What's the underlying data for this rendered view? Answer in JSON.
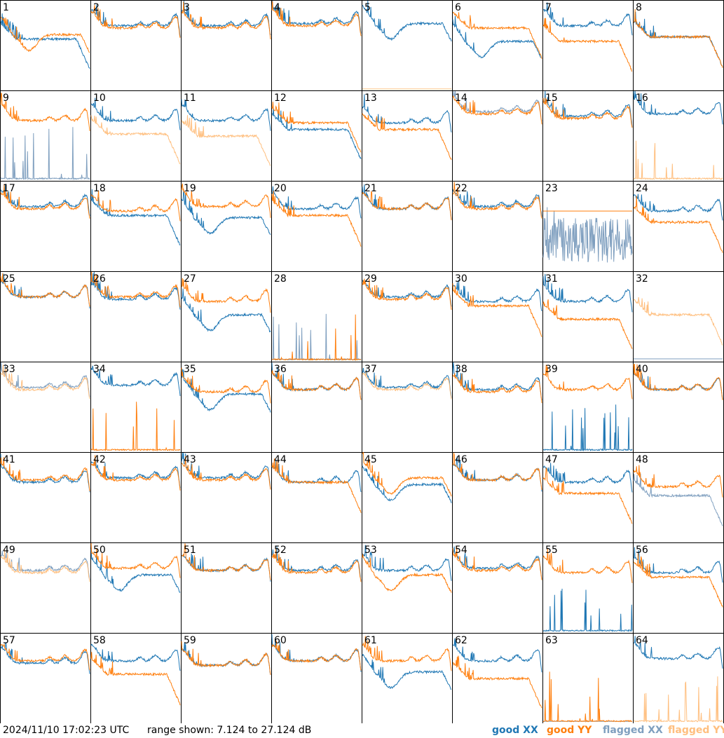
{
  "timestamp": "2024/11/10 17:02:23 UTC",
  "range_text": "range shown: 7.124 to 27.124 dB",
  "legend": {
    "good_xx": "good XX",
    "good_yy": "good YY",
    "flagged_xx": "flagged XX",
    "flagged_yy": "flagged YY"
  },
  "colors": {
    "good_xx": "#1f77b4",
    "good_yy": "#ff7f0e",
    "flagged_xx": "#7f9fbf",
    "flagged_yy": "#ffbf7f"
  },
  "chart_data": {
    "type": "line",
    "units": "dB",
    "ylim": [
      7.124,
      27.124
    ],
    "grid": "8x8 small multiples",
    "panels": [
      {
        "id": "1",
        "xx": {
          "profile": "droop",
          "level": 18.5,
          "status": "good"
        },
        "yy": {
          "profile": "dip",
          "level": 17.5,
          "status": "good"
        }
      },
      {
        "id": "2",
        "xx": {
          "profile": "bowl",
          "level": 21.5,
          "status": "good"
        },
        "yy": {
          "profile": "bowl",
          "level": 21.0,
          "status": "good"
        }
      },
      {
        "id": "3",
        "xx": {
          "profile": "bowl",
          "level": 21.5,
          "status": "good"
        },
        "yy": {
          "profile": "bowl",
          "level": 21.0,
          "status": "good"
        }
      },
      {
        "id": "4",
        "xx": {
          "profile": "bowl",
          "level": 22.0,
          "status": "good"
        },
        "yy": {
          "profile": "bowl",
          "level": 21.5,
          "status": "good"
        }
      },
      {
        "id": "5",
        "xx": {
          "profile": "dip",
          "level": 20.0,
          "status": "good"
        },
        "yy": {
          "profile": "flat",
          "level": 7.3,
          "status": "flagged"
        }
      },
      {
        "id": "6",
        "xx": {
          "profile": "dip",
          "level": 16.0,
          "status": "good"
        },
        "yy": {
          "profile": "droop",
          "level": 21.0,
          "status": "good"
        }
      },
      {
        "id": "7",
        "xx": {
          "profile": "bowl",
          "level": 21.5,
          "status": "good"
        },
        "yy": {
          "profile": "droop",
          "level": 18.0,
          "status": "good"
        }
      },
      {
        "id": "8",
        "xx": {
          "profile": "droop",
          "level": 19.0,
          "status": "good"
        },
        "yy": {
          "profile": "droop",
          "level": 19.0,
          "status": "good"
        }
      },
      {
        "id": "9",
        "xx": {
          "profile": "spiky",
          "level": 9.0,
          "status": "flagged"
        },
        "yy": {
          "profile": "bowl",
          "level": 20.5,
          "status": "good"
        }
      },
      {
        "id": "10",
        "xx": {
          "profile": "bowl",
          "level": 20.5,
          "status": "good"
        },
        "yy": {
          "profile": "droop",
          "level": 17.5,
          "status": "flagged"
        }
      },
      {
        "id": "11",
        "xx": {
          "profile": "bowl",
          "level": 20.5,
          "status": "good"
        },
        "yy": {
          "profile": "droop",
          "level": 17.0,
          "status": "flagged"
        }
      },
      {
        "id": "12",
        "xx": {
          "profile": "droop",
          "level": 18.5,
          "status": "good"
        },
        "yy": {
          "profile": "droop",
          "level": 20.0,
          "status": "good"
        }
      },
      {
        "id": "13",
        "xx": {
          "profile": "bowl",
          "level": 20.0,
          "status": "good"
        },
        "yy": {
          "profile": "droop",
          "level": 18.5,
          "status": "good"
        }
      },
      {
        "id": "14",
        "xx": {
          "profile": "bowl",
          "level": 22.5,
          "status": "flagged"
        },
        "yy": {
          "profile": "bowl",
          "level": 22.0,
          "status": "good"
        }
      },
      {
        "id": "15",
        "xx": {
          "profile": "bowl",
          "level": 21.5,
          "status": "good"
        },
        "yy": {
          "profile": "bowl",
          "level": 21.0,
          "status": "good"
        }
      },
      {
        "id": "16",
        "xx": {
          "profile": "bowl",
          "level": 22.0,
          "status": "good"
        },
        "yy": {
          "profile": "spiky",
          "level": 8.0,
          "status": "flagged"
        }
      },
      {
        "id": "17",
        "xx": {
          "profile": "bowl",
          "level": 21.5,
          "status": "good"
        },
        "yy": {
          "profile": "bowl",
          "level": 21.0,
          "status": "good"
        }
      },
      {
        "id": "18",
        "xx": {
          "profile": "droop",
          "level": 19.5,
          "status": "good"
        },
        "yy": {
          "profile": "bowl",
          "level": 20.5,
          "status": "good"
        }
      },
      {
        "id": "19",
        "xx": {
          "profile": "dip",
          "level": 17.0,
          "status": "good"
        },
        "yy": {
          "profile": "bowl",
          "level": 21.5,
          "status": "good"
        }
      },
      {
        "id": "20",
        "xx": {
          "profile": "bowl",
          "level": 21.0,
          "status": "good"
        },
        "yy": {
          "profile": "droop",
          "level": 19.5,
          "status": "good"
        }
      },
      {
        "id": "21",
        "xx": {
          "profile": "bowl",
          "level": 21.0,
          "status": "good"
        },
        "yy": {
          "profile": "bowl",
          "level": 21.0,
          "status": "good"
        }
      },
      {
        "id": "22",
        "xx": {
          "profile": "bowl",
          "level": 21.5,
          "status": "good"
        },
        "yy": {
          "profile": "bowl",
          "level": 21.0,
          "status": "good"
        }
      },
      {
        "id": "23",
        "xx": {
          "profile": "noisy",
          "level": 14.0,
          "status": "flagged"
        },
        "yy": {
          "profile": "flat",
          "level": 20.5,
          "status": "good"
        }
      },
      {
        "id": "24",
        "xx": {
          "profile": "bowl",
          "level": 20.5,
          "status": "good"
        },
        "yy": {
          "profile": "droop",
          "level": 18.0,
          "status": "good"
        }
      },
      {
        "id": "25",
        "xx": {
          "profile": "bowl",
          "level": 21.5,
          "status": "good"
        },
        "yy": {
          "profile": "bowl",
          "level": 21.5,
          "status": "good"
        }
      },
      {
        "id": "26",
        "xx": {
          "profile": "bowl",
          "level": 21.0,
          "status": "good"
        },
        "yy": {
          "profile": "bowl",
          "level": 21.5,
          "status": "good"
        }
      },
      {
        "id": "27",
        "xx": {
          "profile": "dip",
          "level": 15.5,
          "status": "good"
        },
        "yy": {
          "profile": "bowl",
          "level": 20.5,
          "status": "good"
        }
      },
      {
        "id": "28",
        "xx": {
          "profile": "spiky",
          "level": 7.8,
          "status": "flagged"
        },
        "yy": {
          "profile": "spiky",
          "level": 8.5,
          "status": "good"
        }
      },
      {
        "id": "29",
        "xx": {
          "profile": "bowl",
          "level": 21.5,
          "status": "good"
        },
        "yy": {
          "profile": "bowl",
          "level": 21.0,
          "status": "good"
        }
      },
      {
        "id": "30",
        "xx": {
          "profile": "bowl",
          "level": 20.5,
          "status": "good"
        },
        "yy": {
          "profile": "droop",
          "level": 19.5,
          "status": "good"
        }
      },
      {
        "id": "31",
        "xx": {
          "profile": "bowl",
          "level": 20.5,
          "status": "good"
        },
        "yy": {
          "profile": "droop",
          "level": 16.5,
          "status": "good"
        }
      },
      {
        "id": "32",
        "xx": {
          "profile": "flat",
          "level": 7.6,
          "status": "flagged"
        },
        "yy": {
          "profile": "droop",
          "level": 17.5,
          "status": "flagged"
        }
      },
      {
        "id": "33",
        "xx": {
          "profile": "bowl",
          "level": 21.5,
          "status": "flagged"
        },
        "yy": {
          "profile": "bowl",
          "level": 21.0,
          "status": "flagged"
        }
      },
      {
        "id": "34",
        "xx": {
          "profile": "bowl",
          "level": 22.0,
          "status": "good"
        },
        "yy": {
          "profile": "spiky",
          "level": 8.5,
          "status": "good"
        }
      },
      {
        "id": "35",
        "xx": {
          "profile": "dip",
          "level": 18.0,
          "status": "good"
        },
        "yy": {
          "profile": "bowl",
          "level": 20.5,
          "status": "good"
        }
      },
      {
        "id": "36",
        "xx": {
          "profile": "bowl",
          "level": 21.0,
          "status": "good"
        },
        "yy": {
          "profile": "bowl",
          "level": 21.0,
          "status": "good"
        }
      },
      {
        "id": "37",
        "xx": {
          "profile": "bowl",
          "level": 21.5,
          "status": "good"
        },
        "yy": {
          "profile": "bowl",
          "level": 21.0,
          "status": "flagged"
        }
      },
      {
        "id": "38",
        "xx": {
          "profile": "bowl",
          "level": 21.0,
          "status": "good"
        },
        "yy": {
          "profile": "bowl",
          "level": 20.5,
          "status": "good"
        }
      },
      {
        "id": "39",
        "xx": {
          "profile": "spiky",
          "level": 8.0,
          "status": "good"
        },
        "yy": {
          "profile": "bowl",
          "level": 21.0,
          "status": "good"
        }
      },
      {
        "id": "40",
        "xx": {
          "profile": "bowl",
          "level": 21.0,
          "status": "good"
        },
        "yy": {
          "profile": "bowl",
          "level": 21.0,
          "status": "good"
        }
      },
      {
        "id": "41",
        "xx": {
          "profile": "bowl",
          "level": 20.5,
          "status": "good"
        },
        "yy": {
          "profile": "bowl",
          "level": 21.0,
          "status": "good"
        }
      },
      {
        "id": "42",
        "xx": {
          "profile": "bowl",
          "level": 21.5,
          "status": "good"
        },
        "yy": {
          "profile": "bowl",
          "level": 21.0,
          "status": "good"
        }
      },
      {
        "id": "43",
        "xx": {
          "profile": "bowl",
          "level": 21.5,
          "status": "good"
        },
        "yy": {
          "profile": "bowl",
          "level": 21.0,
          "status": "good"
        }
      },
      {
        "id": "44",
        "xx": {
          "profile": "bowl",
          "level": 20.5,
          "status": "good"
        },
        "yy": {
          "profile": "droop",
          "level": 20.5,
          "status": "good"
        }
      },
      {
        "id": "45",
        "xx": {
          "profile": "dip",
          "level": 18.0,
          "status": "good"
        },
        "yy": {
          "profile": "dip",
          "level": 19.5,
          "status": "good"
        }
      },
      {
        "id": "46",
        "xx": {
          "profile": "bowl",
          "level": 21.0,
          "status": "good"
        },
        "yy": {
          "profile": "bowl",
          "level": 21.0,
          "status": "good"
        }
      },
      {
        "id": "47",
        "xx": {
          "profile": "bowl",
          "level": 20.5,
          "status": "good"
        },
        "yy": {
          "profile": "droop",
          "level": 18.0,
          "status": "good"
        }
      },
      {
        "id": "48",
        "xx": {
          "profile": "droop",
          "level": 17.5,
          "status": "flagged"
        },
        "yy": {
          "profile": "bowl",
          "level": 19.5,
          "status": "good"
        }
      },
      {
        "id": "49",
        "xx": {
          "profile": "bowl",
          "level": 21.0,
          "status": "flagged"
        },
        "yy": {
          "profile": "bowl",
          "level": 20.5,
          "status": "flagged"
        }
      },
      {
        "id": "50",
        "xx": {
          "profile": "dip",
          "level": 18.0,
          "status": "good"
        },
        "yy": {
          "profile": "bowl",
          "level": 21.5,
          "status": "good"
        }
      },
      {
        "id": "51",
        "xx": {
          "profile": "bowl",
          "level": 21.0,
          "status": "good"
        },
        "yy": {
          "profile": "bowl",
          "level": 21.0,
          "status": "good"
        }
      },
      {
        "id": "52",
        "xx": {
          "profile": "bowl",
          "level": 21.0,
          "status": "good"
        },
        "yy": {
          "profile": "bowl",
          "level": 20.5,
          "status": "good"
        }
      },
      {
        "id": "53",
        "xx": {
          "profile": "bowl",
          "level": 21.0,
          "status": "good"
        },
        "yy": {
          "profile": "dip",
          "level": 18.0,
          "status": "good"
        }
      },
      {
        "id": "54",
        "xx": {
          "profile": "bowl",
          "level": 21.5,
          "status": "good"
        },
        "yy": {
          "profile": "bowl",
          "level": 21.0,
          "status": "good"
        }
      },
      {
        "id": "55",
        "xx": {
          "profile": "spiky",
          "level": 8.5,
          "status": "good"
        },
        "yy": {
          "profile": "bowl",
          "level": 20.5,
          "status": "good"
        }
      },
      {
        "id": "56",
        "xx": {
          "profile": "bowl",
          "level": 20.5,
          "status": "good"
        },
        "yy": {
          "profile": "droop",
          "level": 19.5,
          "status": "good"
        }
      },
      {
        "id": "57",
        "xx": {
          "profile": "bowl",
          "level": 20.5,
          "status": "good"
        },
        "yy": {
          "profile": "bowl",
          "level": 21.0,
          "status": "good"
        }
      },
      {
        "id": "58",
        "xx": {
          "profile": "bowl",
          "level": 21.0,
          "status": "good"
        },
        "yy": {
          "profile": "droop",
          "level": 18.0,
          "status": "good"
        }
      },
      {
        "id": "59",
        "xx": {
          "profile": "bowl",
          "level": 20.0,
          "status": "good"
        },
        "yy": {
          "profile": "bowl",
          "level": 20.0,
          "status": "good"
        }
      },
      {
        "id": "60",
        "xx": {
          "profile": "bowl",
          "level": 21.0,
          "status": "good"
        },
        "yy": {
          "profile": "bowl",
          "level": 21.0,
          "status": "good"
        }
      },
      {
        "id": "61",
        "xx": {
          "profile": "dip",
          "level": 16.5,
          "status": "good"
        },
        "yy": {
          "profile": "bowl",
          "level": 21.0,
          "status": "good"
        }
      },
      {
        "id": "62",
        "xx": {
          "profile": "bowl",
          "level": 21.0,
          "status": "good"
        },
        "yy": {
          "profile": "droop",
          "level": 17.0,
          "status": "good"
        }
      },
      {
        "id": "63",
        "xx": {
          "profile": "flat",
          "level": 7.4,
          "status": "flagged"
        },
        "yy": {
          "profile": "spiky",
          "level": 8.5,
          "status": "good"
        }
      },
      {
        "id": "64",
        "xx": {
          "profile": "bowl",
          "level": 21.5,
          "status": "good"
        },
        "yy": {
          "profile": "spiky",
          "level": 7.6,
          "status": "flagged"
        }
      }
    ]
  }
}
